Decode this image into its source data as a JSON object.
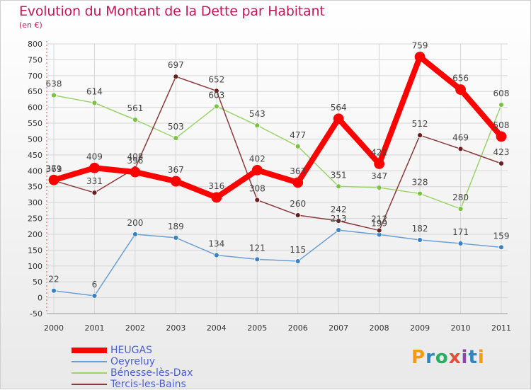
{
  "header": {
    "title": "Evolution du Montant de la Dette par Habitant",
    "unit": "(en €)"
  },
  "logo": {
    "letters": [
      "P",
      "r",
      "o",
      "x",
      "i",
      "t",
      "i"
    ],
    "colors": [
      "#f39c12",
      "#2e86c1",
      "#27ae60",
      "#e74c3c",
      "#8e44ad",
      "#2e86c1",
      "#f39c12"
    ]
  },
  "chart_data": {
    "type": "line",
    "title": "Evolution du Montant de la Dette par Habitant",
    "ylabel": "(en €)",
    "x": [
      "2000",
      "2001",
      "2002",
      "2003",
      "2004",
      "2005",
      "2006",
      "2007",
      "2008",
      "2009",
      "2010",
      "2011"
    ],
    "ylim": [
      -50,
      800
    ],
    "yticks": [
      -50,
      0,
      50,
      100,
      150,
      200,
      250,
      300,
      350,
      400,
      450,
      500,
      550,
      600,
      650,
      700,
      750,
      800
    ],
    "grid": true,
    "legend_position": "bottom-left",
    "series": [
      {
        "name": "Oeyreluy",
        "color": "#6a9fd4",
        "marker": "#3b82c4",
        "values": [
          22,
          6,
          200,
          189,
          134,
          121,
          115,
          213,
          199,
          182,
          171,
          159
        ]
      },
      {
        "name": "Bénesse-lès-Dax",
        "color": "#9ad46a",
        "marker": "#7cc242",
        "values": [
          638,
          614,
          561,
          503,
          603,
          543,
          477,
          351,
          347,
          328,
          280,
          608
        ]
      },
      {
        "name": "Tercis-les-Bains",
        "color": "#8b3a3a",
        "marker": "#6b1e1e",
        "values": [
          369,
          331,
          408,
          697,
          652,
          308,
          260,
          242,
          212,
          512,
          469,
          423
        ]
      },
      {
        "name": "HEUGAS",
        "color": "#ff0000",
        "marker": "#ff0000",
        "values": [
          371,
          409,
          396,
          367,
          316,
          402,
          363,
          564,
          422,
          759,
          656,
          508
        ]
      }
    ],
    "legend_order": [
      "HEUGAS",
      "Oeyreluy",
      "Bénesse-lès-Dax",
      "Tercis-les-Bains"
    ]
  }
}
